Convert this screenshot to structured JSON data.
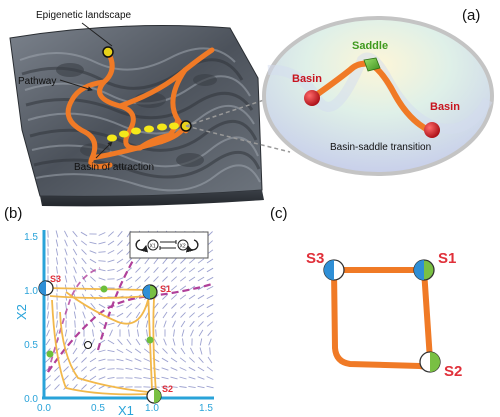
{
  "panel_a": {
    "label": "(a)",
    "landscape_title": "Epigenetic landscape",
    "pathway_label": "Pathway",
    "basin_label": "Basin of attraction",
    "inset": {
      "saddle_label": "Saddle",
      "basin_left": "Basin",
      "basin_right": "Basin",
      "caption": "Basin-saddle transition"
    }
  },
  "panel_b": {
    "label": "(b)",
    "x_axis_label": "X1",
    "y_axis_label": "X2",
    "x_ticks": [
      "0.0",
      "0.5",
      "1.0",
      "1.5"
    ],
    "y_ticks": [
      "0.0",
      "0.5",
      "1.0",
      "1.5"
    ],
    "states": [
      "S1",
      "S2",
      "S3"
    ],
    "legend_gene_1": "X1",
    "legend_gene_2": "X2"
  },
  "panel_c": {
    "label": "(c)",
    "states": [
      "S3",
      "S1",
      "S2"
    ]
  },
  "colors": {
    "pathway": "#f07a26",
    "state_label": "#e0303a",
    "axis": "#29a3d9",
    "nullcline": "#b0409a",
    "trajectory": "#f2b84b",
    "saddle": "#6cbf3c",
    "basin_ball": "#c8141e",
    "node_blue": "#2f8fd6",
    "node_green": "#79c043"
  }
}
